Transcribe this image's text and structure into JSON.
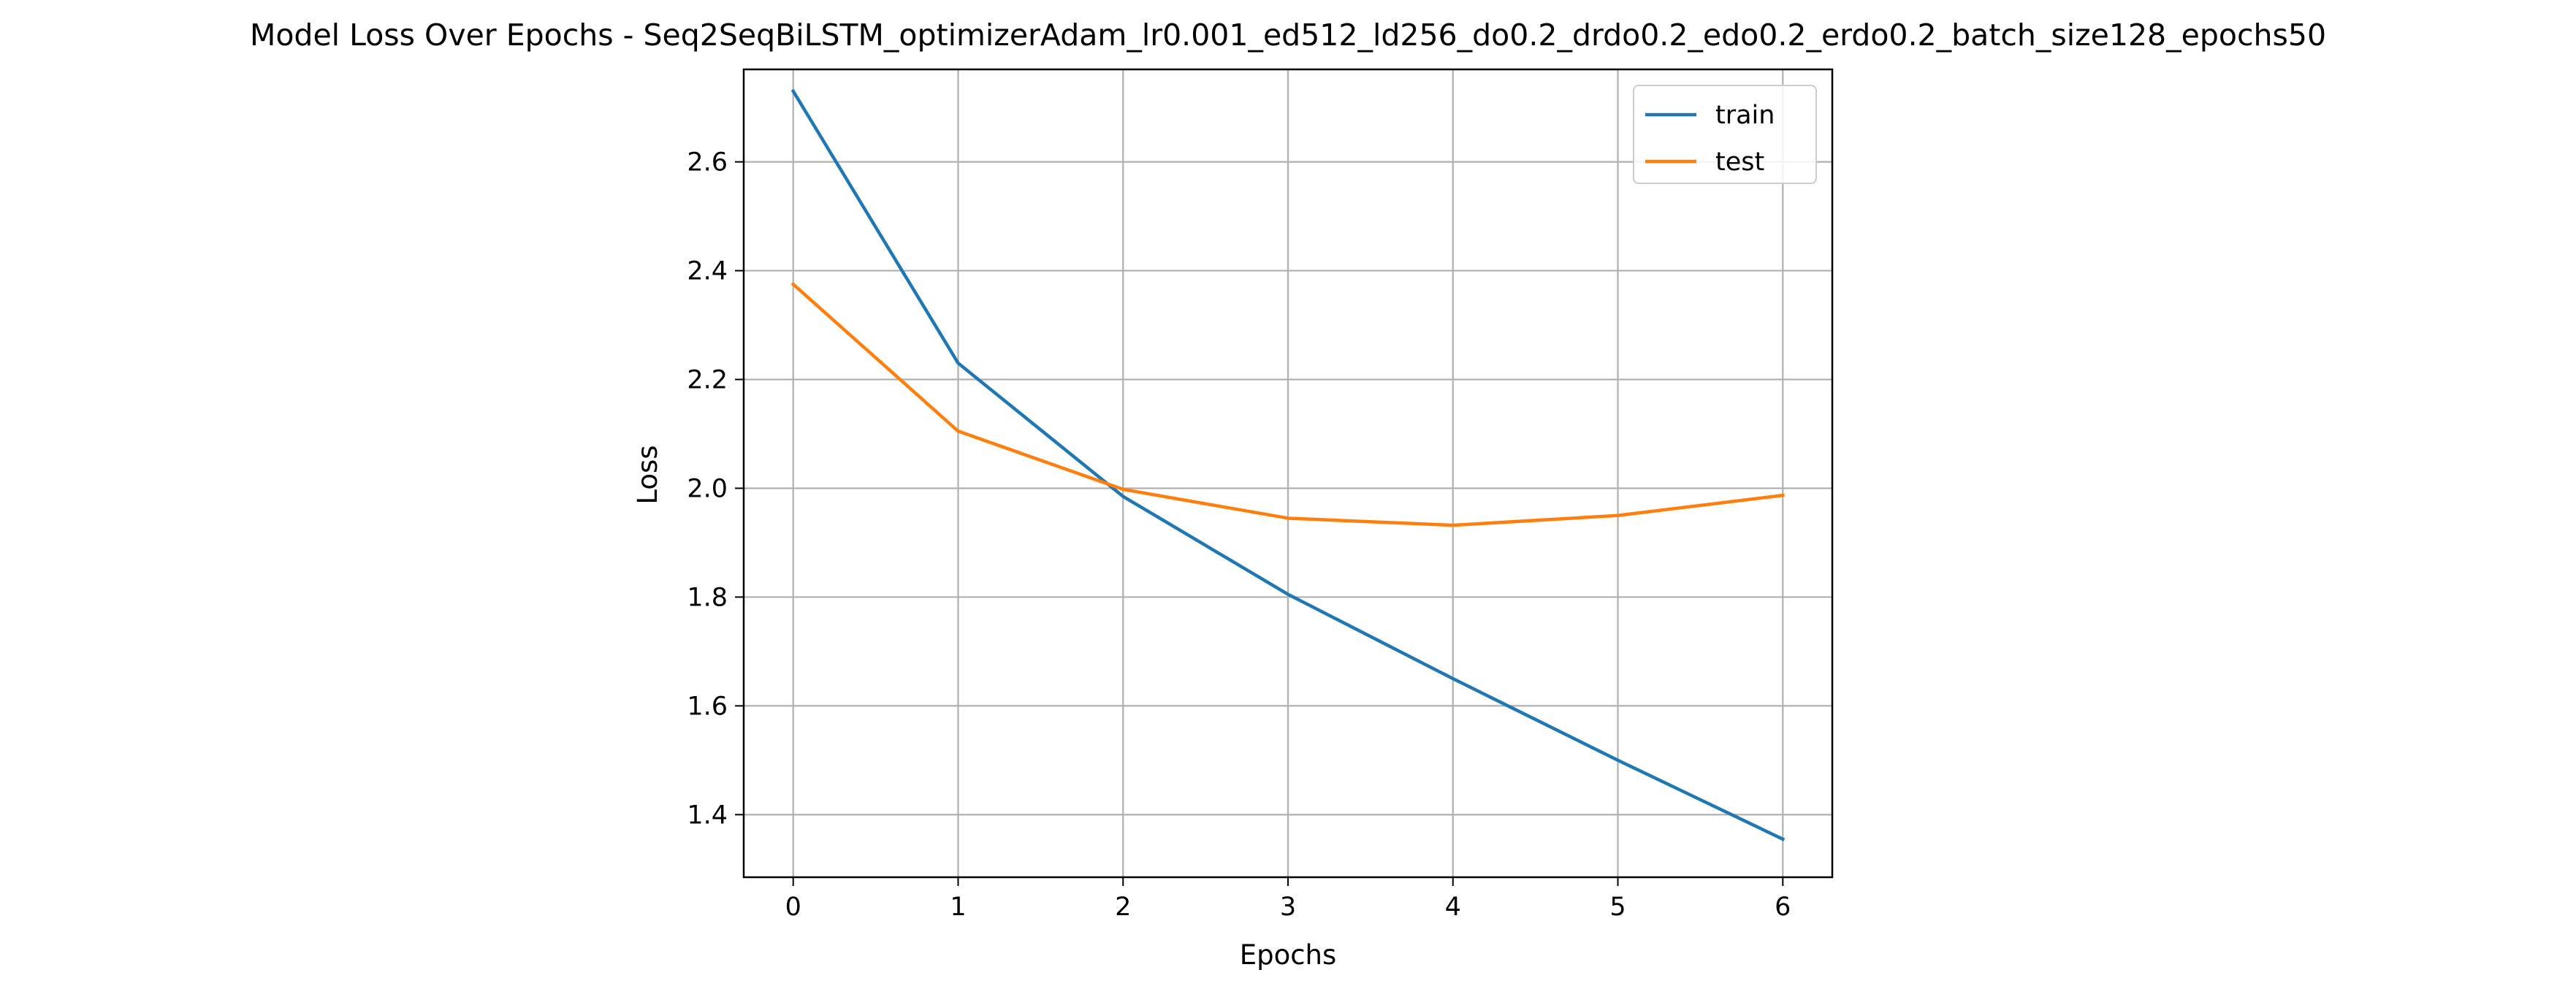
{
  "chart_data": {
    "type": "line",
    "title": "Model Loss Over Epochs - Seq2SeqBiLSTM_optimizerAdam_lr0.001_ed512_ld256_do0.2_drdo0.2_edo0.2_erdo0.2_batch_size128_epochs50",
    "xlabel": "Epochs",
    "ylabel": "Loss",
    "x": [
      0,
      1,
      2,
      3,
      4,
      5,
      6
    ],
    "xlim": [
      -0.3,
      6.3
    ],
    "ylim": [
      1.285,
      2.77
    ],
    "x_ticks": [
      0,
      1,
      2,
      3,
      4,
      5,
      6
    ],
    "y_ticks": [
      1.4,
      1.6,
      1.8,
      2.0,
      2.2,
      2.4,
      2.6
    ],
    "grid": true,
    "legend_position": "top-right",
    "series": [
      {
        "name": "train",
        "color": "#1f77b4",
        "values": [
          2.73,
          2.23,
          1.985,
          1.805,
          1.65,
          1.5,
          1.355
        ]
      },
      {
        "name": "test",
        "color": "#ff7f0e",
        "values": [
          2.375,
          2.105,
          1.998,
          1.945,
          1.932,
          1.95,
          1.987
        ]
      }
    ]
  }
}
